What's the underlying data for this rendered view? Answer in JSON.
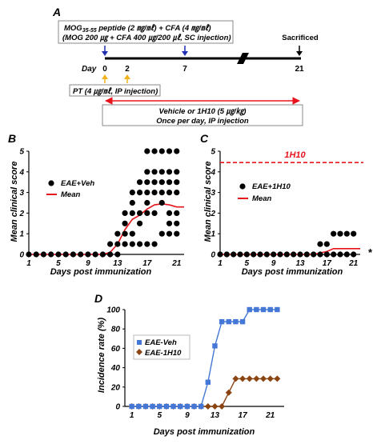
{
  "panel_labels": {
    "a": "A",
    "b": "B",
    "c": "C",
    "d": "D"
  },
  "schematic": {
    "box1_line1_pre": "MOG",
    "box1_line1_sub": "35-55",
    "box1_line1_post": " peptide (2 ㎎/㎖) + CFA (4 ㎎/㎖)",
    "box1_line2": "(MOG 200 ㎍ + CFA 400 ㎍/200 ㎕, SC injection)",
    "sacrificed": "Sacrificed",
    "day_label": "Day",
    "day_ticks": [
      "0",
      "2",
      "7",
      "21"
    ],
    "pt_box": "PT (4 ㎍/㎖, IP injection)",
    "vehicle_line1": "Vehicle or 1H10 (5 ㎍/㎏)",
    "vehicle_line2": "Once per day, IP injection",
    "colors": {
      "mog_arrow": "#1f2fb0",
      "pt_arrow": "#f2b21c",
      "treatment_arrow": "#e8141c",
      "sacrificed_arrow": "#000000"
    }
  },
  "chart_data": [
    {
      "panel": "B",
      "type": "scatter",
      "xlabel": "Days post immunization",
      "ylabel": "Mean clinical score",
      "xlim": [
        1,
        22
      ],
      "ylim": [
        0,
        5
      ],
      "xticks": [
        1,
        5,
        9,
        13,
        17,
        21
      ],
      "yticks": [
        0,
        1,
        2,
        3,
        4,
        5
      ],
      "legend_position": "left",
      "series": [
        {
          "name": "EAE+Veh",
          "type": "scatter",
          "color": "#000000",
          "points": [
            [
              1,
              0
            ],
            [
              2,
              0
            ],
            [
              3,
              0
            ],
            [
              4,
              0
            ],
            [
              5,
              0
            ],
            [
              6,
              0
            ],
            [
              7,
              0
            ],
            [
              8,
              0
            ],
            [
              9,
              0
            ],
            [
              10,
              0
            ],
            [
              11,
              0
            ],
            [
              12,
              0
            ],
            [
              12,
              0.5
            ],
            [
              13,
              0
            ],
            [
              13,
              0.5
            ],
            [
              13,
              1
            ],
            [
              14,
              0.5
            ],
            [
              14,
              1
            ],
            [
              14,
              1.5
            ],
            [
              14,
              2
            ],
            [
              15,
              0.5
            ],
            [
              15,
              1
            ],
            [
              15,
              2
            ],
            [
              15,
              2.5
            ],
            [
              15,
              3
            ],
            [
              16,
              0.5
            ],
            [
              16,
              1.5
            ],
            [
              16,
              2
            ],
            [
              16,
              3
            ],
            [
              16,
              3.5
            ],
            [
              17,
              0.5
            ],
            [
              17,
              2
            ],
            [
              17,
              2.5
            ],
            [
              17,
              3
            ],
            [
              17,
              3.5
            ],
            [
              17,
              4
            ],
            [
              17,
              5
            ],
            [
              18,
              0.5
            ],
            [
              18,
              2
            ],
            [
              18,
              3
            ],
            [
              18,
              3.5
            ],
            [
              18,
              4
            ],
            [
              18,
              5
            ],
            [
              19,
              1
            ],
            [
              19,
              2.5
            ],
            [
              19,
              3
            ],
            [
              19,
              3.5
            ],
            [
              19,
              4
            ],
            [
              19,
              5
            ],
            [
              20,
              1
            ],
            [
              20,
              1.5
            ],
            [
              20,
              2
            ],
            [
              20,
              3
            ],
            [
              20,
              3.5
            ],
            [
              20,
              4
            ],
            [
              20,
              5
            ],
            [
              21,
              1
            ],
            [
              21,
              1.5
            ],
            [
              21,
              2
            ],
            [
              21,
              3
            ],
            [
              21,
              3.5
            ],
            [
              21,
              4
            ],
            [
              21,
              5
            ]
          ]
        },
        {
          "name": "Mean",
          "type": "line",
          "color": "#e8141c",
          "x": [
            1,
            2,
            3,
            4,
            5,
            6,
            7,
            8,
            9,
            10,
            11,
            12,
            13,
            14,
            15,
            16,
            17,
            18,
            19,
            20,
            21,
            22
          ],
          "y": [
            0,
            0,
            0,
            0,
            0,
            0,
            0,
            0,
            0,
            0,
            0,
            0.1,
            0.5,
            1.2,
            1.7,
            1.9,
            2.2,
            2.4,
            2.45,
            2.4,
            2.3,
            2.3
          ]
        }
      ]
    },
    {
      "panel": "C",
      "type": "scatter",
      "xlabel": "Days post immunization",
      "ylabel": "Mean clinical score",
      "xlim": [
        1,
        22
      ],
      "ylim": [
        0,
        5
      ],
      "xticks": [
        1,
        5,
        9,
        13,
        17,
        21
      ],
      "yticks": [
        0,
        1,
        2,
        3,
        4,
        5
      ],
      "legend_position": "center-left",
      "annotation_line": {
        "text": "1H10",
        "y": 4.45,
        "color": "#e8141c",
        "style": "dashed"
      },
      "significance": "*",
      "series": [
        {
          "name": "EAE+1H10",
          "type": "scatter",
          "color": "#000000",
          "points": [
            [
              1,
              0
            ],
            [
              2,
              0
            ],
            [
              3,
              0
            ],
            [
              4,
              0
            ],
            [
              5,
              0
            ],
            [
              6,
              0
            ],
            [
              7,
              0
            ],
            [
              8,
              0
            ],
            [
              9,
              0
            ],
            [
              10,
              0
            ],
            [
              11,
              0
            ],
            [
              12,
              0
            ],
            [
              13,
              0
            ],
            [
              14,
              0
            ],
            [
              15,
              0
            ],
            [
              16,
              0
            ],
            [
              16,
              0.5
            ],
            [
              17,
              0
            ],
            [
              17,
              0.5
            ],
            [
              18,
              0
            ],
            [
              18,
              1
            ],
            [
              19,
              0
            ],
            [
              19,
              1
            ],
            [
              20,
              0
            ],
            [
              20,
              1
            ],
            [
              21,
              0
            ],
            [
              21,
              1
            ]
          ]
        },
        {
          "name": "Mean",
          "type": "line",
          "color": "#e8141c",
          "x": [
            1,
            2,
            3,
            4,
            5,
            6,
            7,
            8,
            9,
            10,
            11,
            12,
            13,
            14,
            15,
            16,
            17,
            18,
            19,
            20,
            21,
            22
          ],
          "y": [
            0,
            0,
            0,
            0,
            0,
            0,
            0,
            0,
            0,
            0,
            0,
            0,
            0,
            0,
            0,
            0.07,
            0.14,
            0.28,
            0.28,
            0.28,
            0.28,
            0.28
          ]
        }
      ]
    },
    {
      "panel": "D",
      "type": "line",
      "xlabel": "Days post immunization",
      "ylabel": "Incidence rate (%)",
      "xlim": [
        0,
        23
      ],
      "ylim": [
        0,
        100
      ],
      "xticks": [
        1,
        5,
        9,
        13,
        17,
        21
      ],
      "yticks": [
        0,
        20,
        40,
        60,
        80,
        100
      ],
      "legend_position": "left",
      "x": [
        1,
        2,
        3,
        4,
        5,
        6,
        7,
        8,
        9,
        10,
        11,
        12,
        13,
        14,
        15,
        16,
        17,
        18,
        19,
        20,
        21,
        22
      ],
      "series": [
        {
          "name": "EAE-Veh",
          "color": "#4477d6",
          "marker": "square",
          "values": [
            0,
            0,
            0,
            0,
            0,
            0,
            0,
            0,
            0,
            0,
            0,
            25,
            62.5,
            87.5,
            87.5,
            87.5,
            87.5,
            100,
            100,
            100,
            100,
            100
          ]
        },
        {
          "name": "EAE-1H10",
          "color": "#8b4513",
          "marker": "diamond",
          "values": [
            0,
            0,
            0,
            0,
            0,
            0,
            0,
            0,
            0,
            0,
            0,
            0,
            0,
            0,
            14.3,
            28.6,
            28.6,
            28.6,
            28.6,
            28.6,
            28.6,
            28.6
          ]
        }
      ]
    }
  ]
}
